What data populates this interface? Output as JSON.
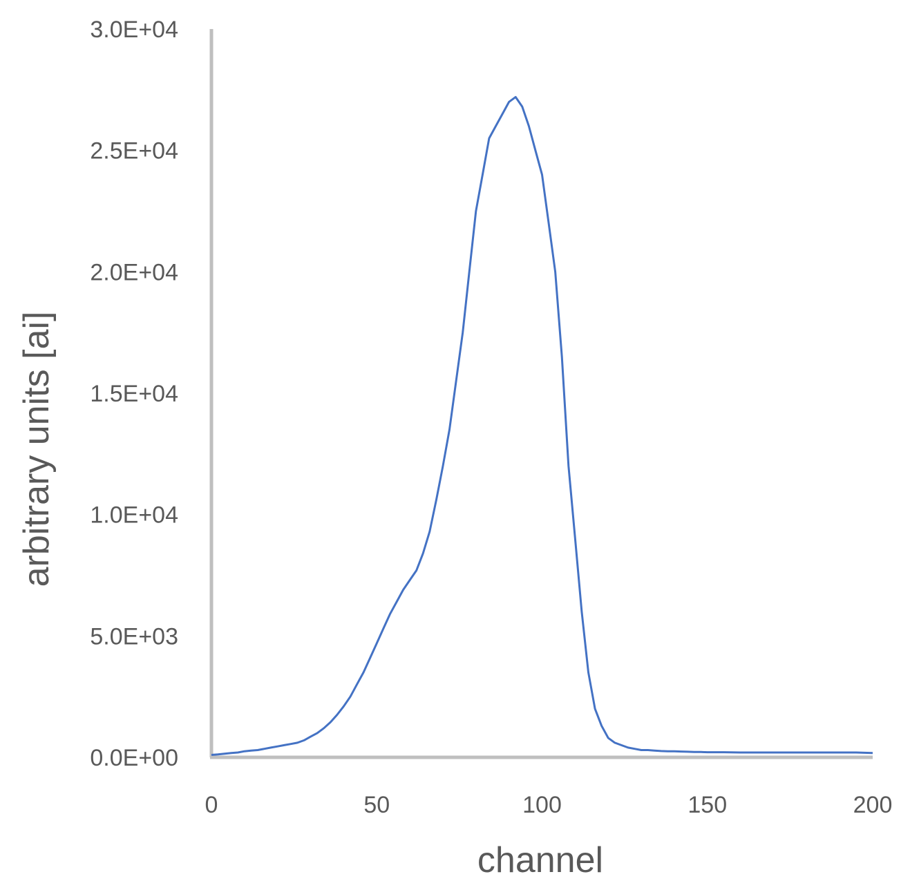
{
  "chart_data": {
    "type": "line",
    "title": "",
    "xlabel": "channel",
    "ylabel": "arbitrary units [ai]",
    "xlim": [
      0,
      200
    ],
    "ylim": [
      0,
      30000
    ],
    "x_ticks": [
      "0",
      "50",
      "100",
      "150",
      "200"
    ],
    "y_ticks": [
      "0.0E+00",
      "5.0E+03",
      "1.0E+04",
      "1.5E+04",
      "2.0E+04",
      "2.5E+04",
      "3.0E+04"
    ],
    "grid": false,
    "legend": "none",
    "colors": {
      "line": "#4472C4",
      "axis": "#BFBFBF",
      "text": "#595959"
    },
    "series": [
      {
        "x": [
          0,
          2,
          4,
          6,
          8,
          10,
          12,
          14,
          16,
          18,
          20,
          22,
          24,
          26,
          28,
          30,
          32,
          34,
          36,
          38,
          40,
          42,
          44,
          46,
          48,
          50,
          52,
          54,
          56,
          58,
          60,
          62,
          64,
          66,
          68,
          70,
          72,
          74,
          76,
          78,
          80,
          82,
          84,
          86,
          88,
          90,
          92,
          94,
          96,
          98,
          100,
          102,
          104,
          106,
          108,
          110,
          112,
          114,
          116,
          118,
          120,
          122,
          124,
          126,
          128,
          130,
          132,
          134,
          136,
          138,
          140,
          142,
          144,
          146,
          148,
          150,
          155,
          160,
          165,
          170,
          175,
          180,
          185,
          190,
          195,
          200
        ],
        "y": [
          100,
          120,
          150,
          180,
          200,
          250,
          280,
          300,
          350,
          400,
          450,
          500,
          550,
          600,
          700,
          850,
          1000,
          1200,
          1450,
          1750,
          2100,
          2500,
          3000,
          3500,
          4100,
          4700,
          5300,
          5900,
          6400,
          6900,
          7300,
          7700,
          8400,
          9300,
          10600,
          12000,
          13500,
          15500,
          17500,
          20000,
          22500,
          24000,
          25500,
          26000,
          26500,
          27000,
          27200,
          26800,
          26000,
          25000,
          24000,
          22000,
          20000,
          16500,
          12000,
          9000,
          6000,
          3500,
          2000,
          1300,
          800,
          600,
          500,
          400,
          350,
          300,
          300,
          280,
          260,
          250,
          250,
          240,
          230,
          220,
          220,
          210,
          210,
          200,
          200,
          200,
          200,
          200,
          200,
          200,
          200,
          180
        ]
      }
    ]
  }
}
